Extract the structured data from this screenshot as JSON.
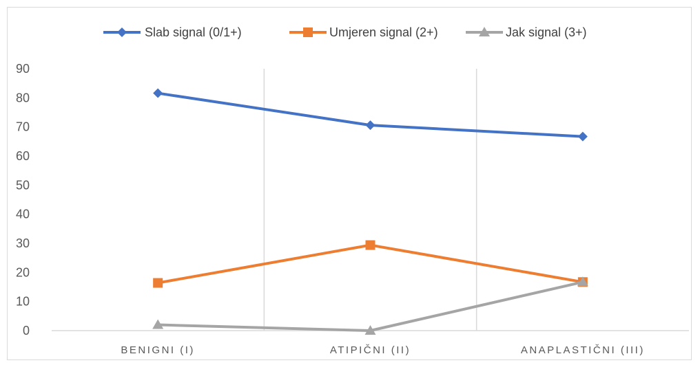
{
  "chart_data": {
    "type": "line",
    "title": "",
    "xlabel": "",
    "ylabel": "",
    "categories": [
      "BENIGNI (I)",
      "ATIPIČNI (II)",
      "ANAPLASTIČNI (III)"
    ],
    "ylim": [
      0,
      90
    ],
    "yticks": [
      "0",
      "10",
      "20",
      "30",
      "40",
      "50",
      "60",
      "70",
      "80",
      "90"
    ],
    "grid": "vertical category separators",
    "legend_position": "top",
    "series": [
      {
        "name": "Slab signal (0/1+)",
        "values": [
          81.6,
          70.6,
          66.7
        ],
        "color": "#4472c4",
        "marker": "diamond"
      },
      {
        "name": "Umjeren signal (2+)",
        "values": [
          16.4,
          29.4,
          16.7
        ],
        "color": "#ed7d31",
        "marker": "square"
      },
      {
        "name": "Jak signal (3+)",
        "values": [
          2.0,
          0.0,
          16.7
        ],
        "color": "#a5a5a5",
        "marker": "triangle"
      }
    ]
  }
}
